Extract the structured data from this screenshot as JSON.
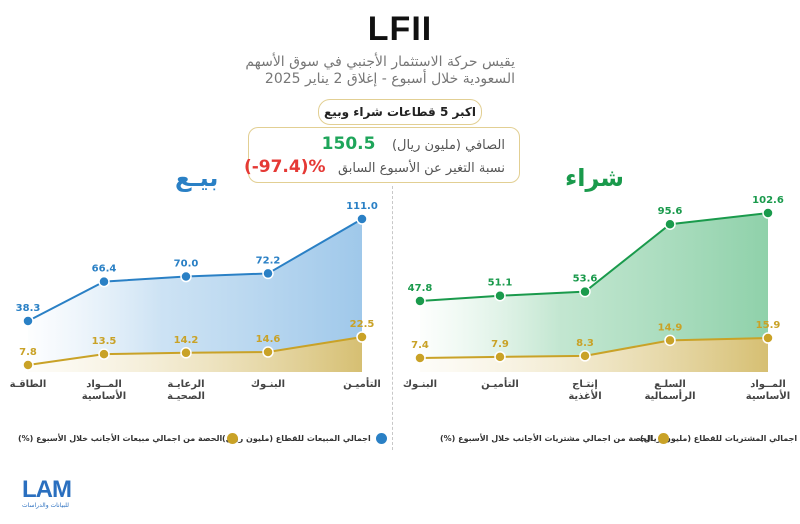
{
  "header": {
    "title": "LFII",
    "subtitle_line1": "يقيس حركة الاستثمار الأجنبي في سوق الأسهم",
    "subtitle_line2": "السعودية خلال أسبوع - إغلاق 2 يناير 2025"
  },
  "pill": "اكبر 5 قطاعات شراء وبيع",
  "summary": {
    "net_label": "الصافي (مليون ريال)",
    "net_value": "150.5",
    "change_label": "نسبة التغير عن الأسبوع السابق",
    "change_value": "(-97.4)%"
  },
  "colors": {
    "sell": "#2a80c5",
    "buy": "#1a9a4c",
    "share": "#c9a227",
    "change": "#e53935"
  },
  "logo": {
    "name": "LAM",
    "sub": "للبيانات والدراسات"
  },
  "chart_data": [
    {
      "type": "line",
      "title": "بيـع",
      "categories": [
        "الطاقـة",
        "المــواد الأساسية",
        "الرعايـة الصحيـة",
        "البنـوك",
        "التأميـن"
      ],
      "series": [
        {
          "name": "اجمالي المبيعات للقطاع (مليون ريال)",
          "values": [
            38.3,
            66.4,
            70.0,
            72.2,
            111.0
          ]
        },
        {
          "name": "الحصة من اجمالي مبيعات الأجانب خلال الأسبوع (%)",
          "values": [
            7.8,
            13.5,
            14.2,
            14.6,
            22.5
          ]
        }
      ],
      "value_labels": {
        "total": [
          "38.3",
          "66.4",
          "70.0",
          "72.2",
          "111.0"
        ],
        "share": [
          "7.8",
          "13.5",
          "14.2",
          "14.6",
          "22.5"
        ]
      },
      "legend_position": "bottom"
    },
    {
      "type": "line",
      "title": "شراء",
      "categories": [
        "البنـوك",
        "التأميـن",
        "إنتـاج الأغذية",
        "السلـع الرأسمالية",
        "المــواد الأساسية"
      ],
      "series": [
        {
          "name": "اجمالي المشتريات للقطاع (مليون ريال)",
          "values": [
            47.8,
            51.1,
            53.6,
            95.6,
            102.6
          ]
        },
        {
          "name": "الحصة من اجمالي مشتريات الأجانب خلال الأسبوع (%)",
          "values": [
            7.4,
            7.9,
            8.3,
            14.9,
            15.9
          ]
        }
      ],
      "value_labels": {
        "total": [
          "47.8",
          "51.1",
          "53.6",
          "95.6",
          "102.6"
        ],
        "share": [
          "7.4",
          "7.9",
          "8.3",
          "14.9",
          "15.9"
        ]
      },
      "legend_position": "bottom"
    }
  ]
}
